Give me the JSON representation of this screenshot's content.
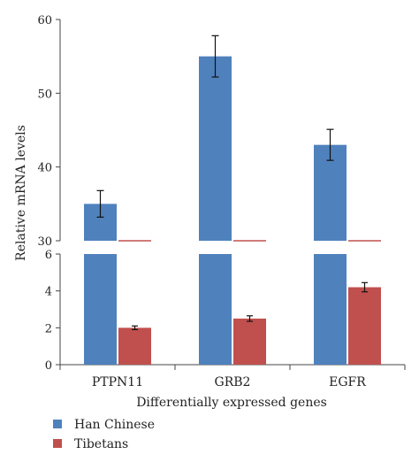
{
  "chart_data": {
    "type": "bar",
    "broken_axis": true,
    "categories": [
      "PTPN11",
      "GRB2",
      "EGFR"
    ],
    "series": [
      {
        "name": "Han Chinese",
        "color": "#4f81bd",
        "values": [
          35,
          55,
          43
        ],
        "errors": [
          1.8,
          2.8,
          2.1
        ]
      },
      {
        "name": "Tibetans",
        "color": "#c0504d",
        "values": [
          2.0,
          2.5,
          4.2
        ],
        "errors": [
          0.1,
          0.15,
          0.25
        ]
      }
    ],
    "upper_axis": {
      "ylim": [
        30,
        60
      ],
      "ticks": [
        "30",
        "40",
        "50",
        "60"
      ]
    },
    "lower_axis": {
      "ylim": [
        0,
        6
      ],
      "ticks": [
        "0",
        "2",
        "4",
        "6"
      ]
    },
    "xlabel": "Differentially expressed genes",
    "ylabel": "Relative mRNA levels",
    "legend_position": "bottom-left",
    "grid": false
  }
}
